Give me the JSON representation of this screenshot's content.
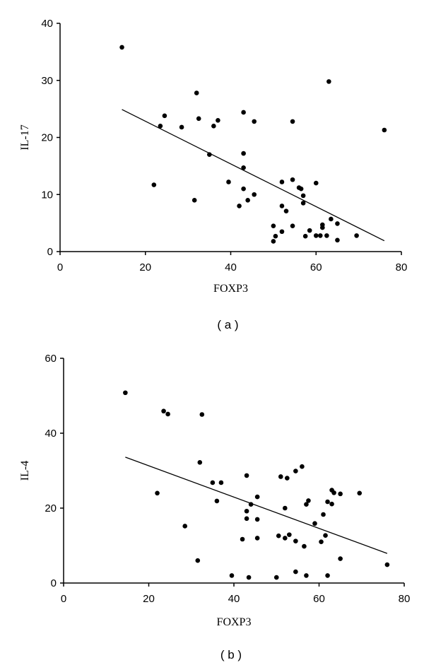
{
  "chart_data": [
    {
      "type": "scatter",
      "panel_label": "( a )",
      "xlabel": "FOXP3",
      "ylabel": "IL-17",
      "xlim": [
        0,
        80
      ],
      "ylim": [
        0,
        40
      ],
      "xticks": [
        "0",
        "20",
        "40",
        "60",
        "80"
      ],
      "yticks": [
        "0",
        "10",
        "20",
        "30",
        "40"
      ],
      "grid": false,
      "points": [
        [
          14.5,
          35.8
        ],
        [
          22,
          11.7
        ],
        [
          23.5,
          22
        ],
        [
          24.5,
          23.8
        ],
        [
          28.5,
          21.8
        ],
        [
          31.5,
          9
        ],
        [
          32,
          27.8
        ],
        [
          32.5,
          23.3
        ],
        [
          35,
          17
        ],
        [
          36,
          22
        ],
        [
          37,
          23
        ],
        [
          39.5,
          12.2
        ],
        [
          42,
          8
        ],
        [
          43,
          24.4
        ],
        [
          43,
          17.2
        ],
        [
          43,
          14.7
        ],
        [
          43,
          11
        ],
        [
          44,
          9
        ],
        [
          45.5,
          10
        ],
        [
          45.5,
          22.8
        ],
        [
          50,
          4.5
        ],
        [
          50,
          1.8
        ],
        [
          50.5,
          2.7
        ],
        [
          52,
          12.2
        ],
        [
          52,
          8
        ],
        [
          52,
          3.5
        ],
        [
          53,
          7.1
        ],
        [
          54.5,
          12.6
        ],
        [
          54.5,
          4.5
        ],
        [
          54.5,
          22.8
        ],
        [
          56,
          11.2
        ],
        [
          56.5,
          11
        ],
        [
          57,
          9.8
        ],
        [
          57,
          8.5
        ],
        [
          57.5,
          2.7
        ],
        [
          58.5,
          3.7
        ],
        [
          60,
          12
        ],
        [
          60,
          2.8
        ],
        [
          61,
          2.8
        ],
        [
          61.5,
          4.7
        ],
        [
          61.5,
          4.2
        ],
        [
          62.5,
          2.8
        ],
        [
          63,
          29.8
        ],
        [
          63.5,
          5.7
        ],
        [
          65,
          2
        ],
        [
          65,
          4.9
        ],
        [
          69.5,
          2.8
        ],
        [
          76,
          21.3
        ]
      ],
      "trendline": [
        [
          14.5,
          24.9
        ],
        [
          76,
          1.9
        ]
      ]
    },
    {
      "type": "scatter",
      "panel_label": "( b )",
      "xlabel": "FOXP3",
      "ylabel": "IL-4",
      "xlim": [
        0,
        80
      ],
      "ylim": [
        0,
        60
      ],
      "xticks": [
        "0",
        "20",
        "40",
        "60",
        "80"
      ],
      "yticks": [
        "0",
        "20",
        "40",
        "60"
      ],
      "grid": false,
      "points": [
        [
          14.5,
          50.8
        ],
        [
          22,
          24
        ],
        [
          23.5,
          45.9
        ],
        [
          24.5,
          45.1
        ],
        [
          28.5,
          15.2
        ],
        [
          31.5,
          6
        ],
        [
          32,
          32.2
        ],
        [
          32.5,
          45
        ],
        [
          35,
          26.8
        ],
        [
          36,
          21.9
        ],
        [
          37,
          26.8
        ],
        [
          39.5,
          2
        ],
        [
          42,
          11.7
        ],
        [
          43,
          28.7
        ],
        [
          43,
          19.2
        ],
        [
          43,
          17.2
        ],
        [
          43.5,
          1.5
        ],
        [
          44,
          21
        ],
        [
          45.5,
          23
        ],
        [
          45.5,
          17
        ],
        [
          45.5,
          12
        ],
        [
          50,
          1.5
        ],
        [
          50.5,
          12.6
        ],
        [
          51,
          28.4
        ],
        [
          52,
          20
        ],
        [
          52,
          12
        ],
        [
          52.5,
          28
        ],
        [
          53,
          12.9
        ],
        [
          54.5,
          11.2
        ],
        [
          54.5,
          29.9
        ],
        [
          54.5,
          3
        ],
        [
          56,
          31.1
        ],
        [
          56.5,
          9.8
        ],
        [
          57,
          2
        ],
        [
          57,
          21
        ],
        [
          57.5,
          22
        ],
        [
          59,
          15.9
        ],
        [
          60.5,
          11
        ],
        [
          61,
          18.3
        ],
        [
          61.5,
          12.7
        ],
        [
          62,
          2
        ],
        [
          62,
          21.7
        ],
        [
          63,
          21.1
        ],
        [
          63,
          24.8
        ],
        [
          63.5,
          24.1
        ],
        [
          65,
          23.8
        ],
        [
          65,
          6.5
        ],
        [
          69.5,
          24
        ],
        [
          76,
          4.9
        ]
      ],
      "trendline": [
        [
          14.5,
          33.6
        ],
        [
          76,
          7.9
        ]
      ]
    }
  ]
}
